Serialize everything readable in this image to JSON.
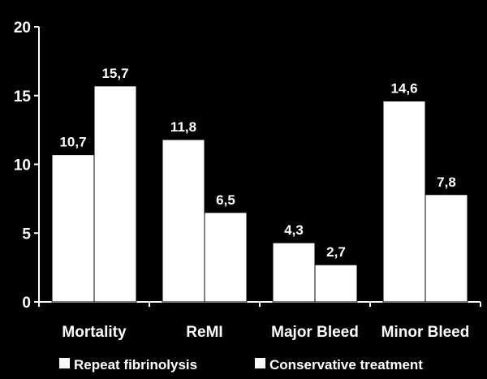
{
  "chart_data": {
    "type": "bar",
    "categories": [
      "Mortality",
      "ReMI",
      "Major Bleed",
      "Minor Bleed"
    ],
    "series": [
      {
        "name": "Repeat fibrinolysis",
        "values": [
          10.7,
          11.8,
          4.3,
          14.6
        ],
        "labels": [
          "10,7",
          "11,8",
          "4,3",
          "14,6"
        ]
      },
      {
        "name": "Conservative treatment",
        "values": [
          15.7,
          6.5,
          2.7,
          7.8
        ],
        "labels": [
          "15,7",
          "6,5",
          "2,7",
          "7,8"
        ]
      }
    ],
    "yticks": [
      "0",
      "5",
      "10",
      "15",
      "20"
    ],
    "ylim": [
      0,
      20
    ],
    "title": "",
    "xlabel": "",
    "ylabel": "",
    "legend_position": "bottom",
    "grid": false,
    "colors": {
      "background": "#000000",
      "bars": "#ffffff",
      "bar_edge": "#000000",
      "text": "#ffffff",
      "axis": "#ffffff"
    }
  }
}
